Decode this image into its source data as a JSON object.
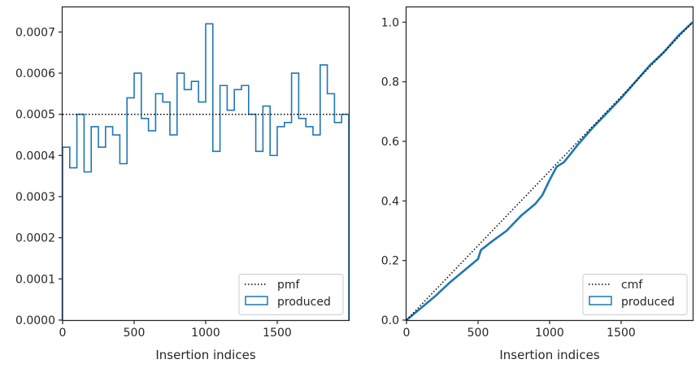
{
  "chart_data": [
    {
      "type": "step-histogram",
      "xlabel": "Insertion indices",
      "ylabel": "",
      "xlim": [
        0,
        2000
      ],
      "ylim": [
        0,
        0.00076
      ],
      "xticks": [
        0,
        500,
        1000,
        1500
      ],
      "xtick_labels": [
        "0",
        "500",
        "1000",
        "1500"
      ],
      "yticks": [
        0,
        0.0001,
        0.0002,
        0.0003,
        0.0004,
        0.0005,
        0.0006,
        0.0007
      ],
      "ytick_labels": [
        "0.0000",
        "0.0001",
        "0.0002",
        "0.0003",
        "0.0004",
        "0.0005",
        "0.0006",
        "0.0007"
      ],
      "grid": false,
      "legend_position": "lower-right",
      "reference": {
        "name": "pmf",
        "y": 0.0005,
        "style": "dotted",
        "color": "#000000"
      },
      "series": [
        {
          "name": "produced",
          "color": "#1f77b4",
          "bin_width": 50,
          "x_start": 0,
          "values": [
            0.00042,
            0.00037,
            0.0005,
            0.00036,
            0.00047,
            0.00042,
            0.00047,
            0.00045,
            0.00038,
            0.00054,
            0.0006,
            0.00049,
            0.00046,
            0.00055,
            0.00053,
            0.00045,
            0.0006,
            0.00056,
            0.00058,
            0.00053,
            0.00072,
            0.00041,
            0.00057,
            0.00051,
            0.00056,
            0.00057,
            0.0005,
            0.00041,
            0.00052,
            0.0004,
            0.00047,
            0.00048,
            0.0006,
            0.00049,
            0.00047,
            0.00045,
            0.00062,
            0.00055,
            0.00048,
            0.0005
          ]
        }
      ]
    },
    {
      "type": "line",
      "xlabel": "Insertion indices",
      "ylabel": "",
      "xlim": [
        0,
        2000
      ],
      "ylim": [
        0,
        1.05
      ],
      "xticks": [
        0,
        500,
        1000,
        1500
      ],
      "xtick_labels": [
        "0",
        "500",
        "1000",
        "1500"
      ],
      "yticks": [
        0,
        0.2,
        0.4,
        0.6,
        0.8,
        1.0
      ],
      "ytick_labels": [
        "0.0",
        "0.2",
        "0.4",
        "0.6",
        "0.8",
        "1.0"
      ],
      "grid": false,
      "legend_position": "lower-right",
      "reference": {
        "name": "cmf",
        "points": [
          [
            0,
            0
          ],
          [
            2000,
            1.0
          ]
        ],
        "style": "dotted",
        "color": "#000000"
      },
      "series": [
        {
          "name": "produced",
          "color": "#1f77b4",
          "x": [
            0,
            100,
            200,
            300,
            400,
            450,
            500,
            520,
            600,
            700,
            800,
            900,
            950,
            1000,
            1050,
            1100,
            1200,
            1300,
            1400,
            1500,
            1600,
            1700,
            1800,
            1900,
            2000
          ],
          "y": [
            0.0,
            0.04,
            0.08,
            0.125,
            0.165,
            0.185,
            0.205,
            0.235,
            0.265,
            0.3,
            0.35,
            0.39,
            0.42,
            0.47,
            0.515,
            0.53,
            0.59,
            0.645,
            0.695,
            0.745,
            0.8,
            0.855,
            0.9,
            0.955,
            1.0
          ]
        }
      ]
    }
  ]
}
